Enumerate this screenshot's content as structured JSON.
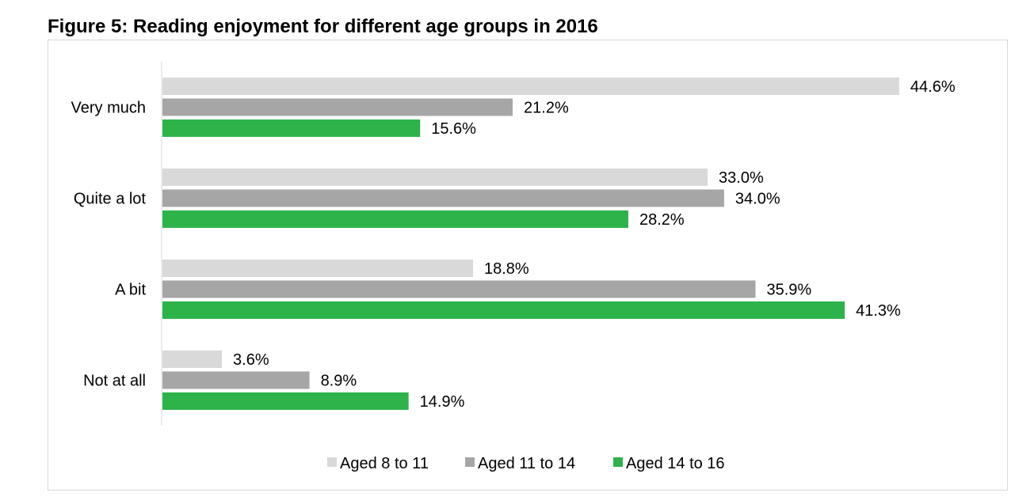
{
  "title": "Figure 5: Reading enjoyment for different age groups in 2016",
  "chart_data": {
    "type": "bar",
    "orientation": "horizontal",
    "title": "Figure 5: Reading enjoyment for different age groups in 2016",
    "categories": [
      "Very much",
      "Quite a lot",
      "A bit",
      "Not at all"
    ],
    "series": [
      {
        "name": "Aged 8 to 11",
        "color": "#d9d9d9",
        "values": [
          44.6,
          33.0,
          18.8,
          3.6
        ]
      },
      {
        "name": "Aged 11 to 14",
        "color": "#a6a6a6",
        "values": [
          21.2,
          34.0,
          35.9,
          8.9
        ]
      },
      {
        "name": "Aged 14 to 16",
        "color": "#2db34a",
        "values": [
          15.6,
          28.2,
          41.3,
          14.9
        ]
      }
    ],
    "value_suffix": "%",
    "value_decimals": 1,
    "xlim": [
      0,
      50
    ],
    "grid": false,
    "legend_position": "bottom"
  }
}
